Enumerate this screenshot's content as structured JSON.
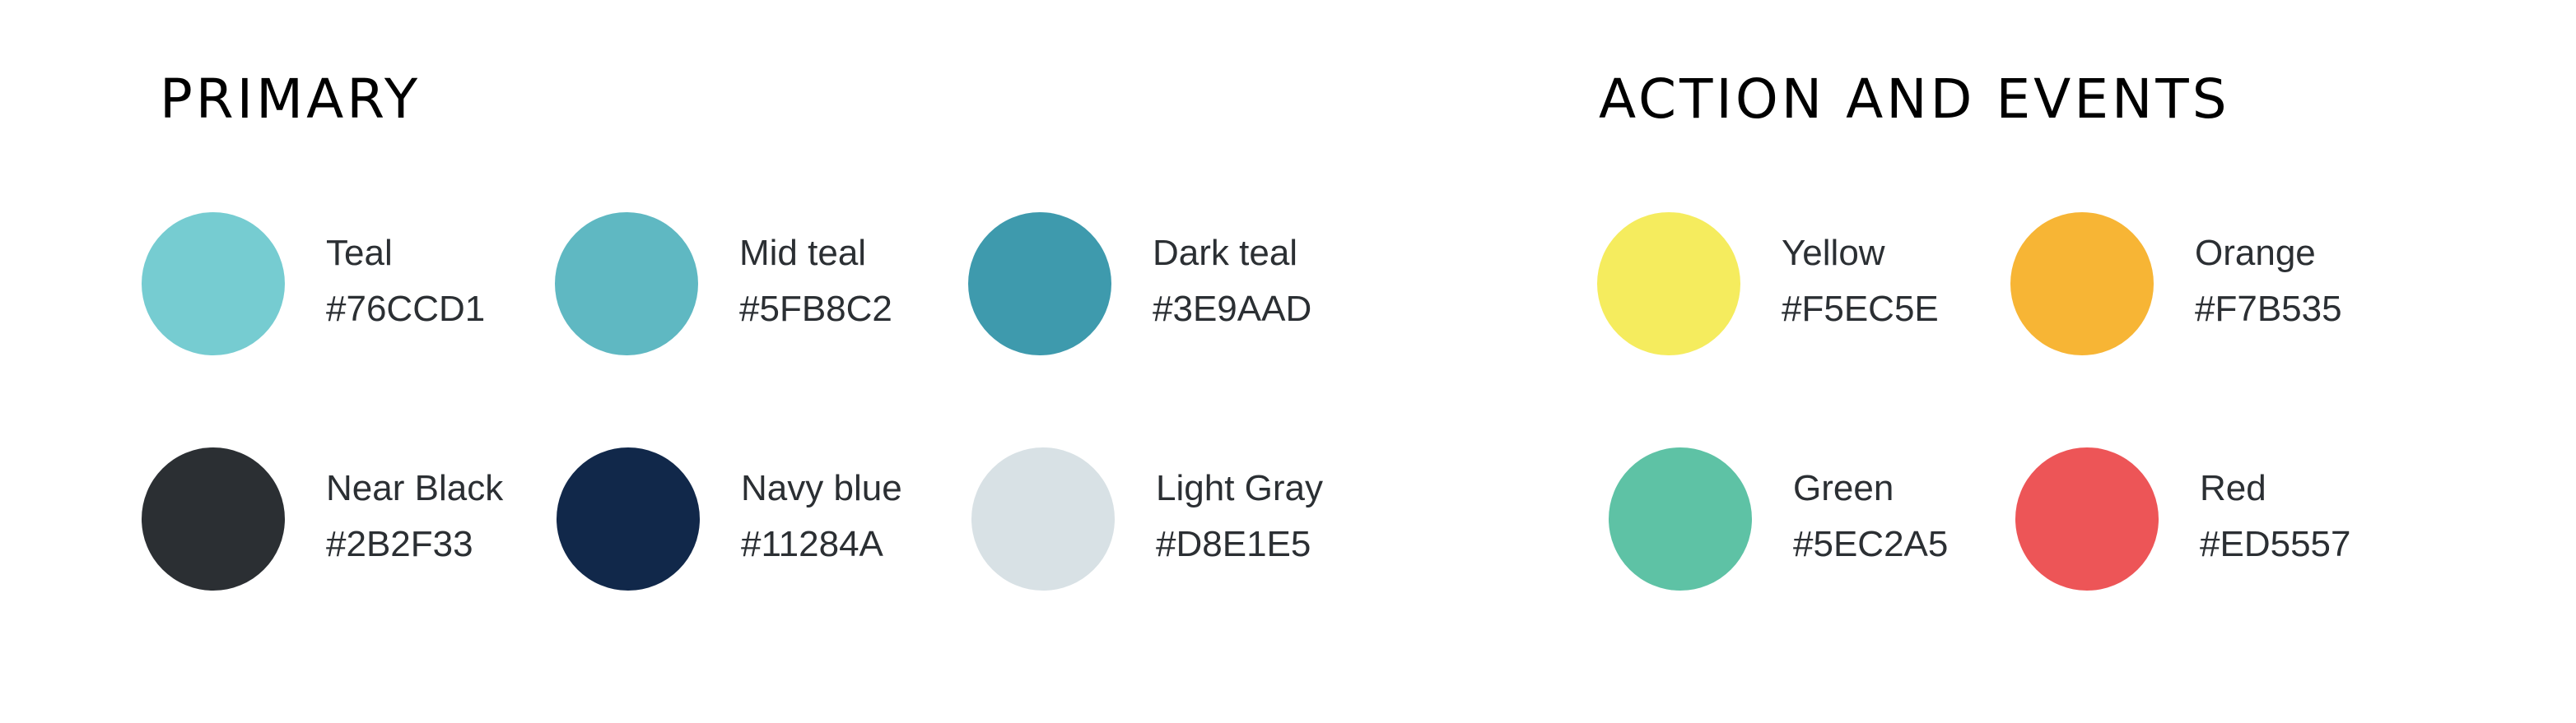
{
  "primary": {
    "title": "PRIMARY",
    "colors": [
      {
        "name": "Teal",
        "hex": "#76CCD1",
        "color": "#76CCD1"
      },
      {
        "name": "Mid teal",
        "hex": "#5FB8C2",
        "color": "#5FB8C2"
      },
      {
        "name": "Dark teal",
        "hex": "#3E9AAD",
        "color": "#3E9AAD"
      },
      {
        "name": "Near Black",
        "hex": "#2B2F33",
        "color": "#2B2F33"
      },
      {
        "name": "Navy blue",
        "hex": "#11284A",
        "color": "#11284A"
      },
      {
        "name": "Light Gray",
        "hex": "#D8E1E5",
        "color": "#D8E1E5"
      }
    ]
  },
  "action": {
    "title": "ACTION AND EVENTS",
    "colors": [
      {
        "name": "Yellow",
        "hex": "#F5EC5E",
        "color": "#F5EC5E"
      },
      {
        "name": "Orange",
        "hex": "#F7B535",
        "color": "#F7B535"
      },
      {
        "name": "Green",
        "hex": "#5EC2A5",
        "color": "#5EC2A5"
      },
      {
        "name": "Red",
        "hex": "#ED5557",
        "color": "#ED5557"
      }
    ]
  }
}
